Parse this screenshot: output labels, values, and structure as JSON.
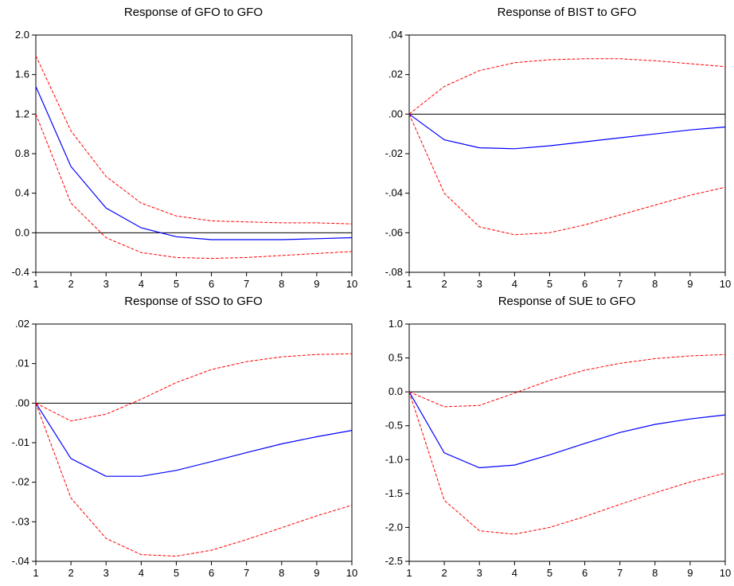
{
  "colors": {
    "response": "#0000ff",
    "band": "#ff0000",
    "zero_line": "#000000",
    "axis": "#000000"
  },
  "chart_data": [
    {
      "type": "line",
      "title": "Response of GFO to GFO",
      "x": [
        1,
        2,
        3,
        4,
        5,
        6,
        7,
        8,
        9,
        10
      ],
      "xlim": [
        1,
        10
      ],
      "ylim": [
        -0.4,
        2.0
      ],
      "yticks": [
        -0.4,
        0.0,
        0.4,
        0.8,
        1.2,
        1.6,
        2.0
      ],
      "ytick_labels": [
        "-0.4",
        "0.0",
        "0.4",
        "0.8",
        "1.2",
        "1.6",
        "2.0"
      ],
      "grid": false,
      "series": [
        {
          "role": "response",
          "values": [
            1.48,
            0.67,
            0.25,
            0.05,
            -0.04,
            -0.07,
            -0.07,
            -0.07,
            -0.06,
            -0.05
          ]
        },
        {
          "role": "upper_band",
          "values": [
            1.79,
            1.03,
            0.57,
            0.3,
            0.17,
            0.12,
            0.11,
            0.1,
            0.1,
            0.09
          ]
        },
        {
          "role": "lower_band",
          "values": [
            1.2,
            0.3,
            -0.05,
            -0.2,
            -0.25,
            -0.26,
            -0.25,
            -0.23,
            -0.21,
            -0.19
          ]
        }
      ]
    },
    {
      "type": "line",
      "title": "Response of BIST to GFO",
      "x": [
        1,
        2,
        3,
        4,
        5,
        6,
        7,
        8,
        9,
        10
      ],
      "xlim": [
        1,
        10
      ],
      "ylim": [
        -0.08,
        0.04
      ],
      "yticks": [
        -0.08,
        -0.06,
        -0.04,
        -0.02,
        0.0,
        0.02,
        0.04
      ],
      "ytick_labels": [
        "-.08",
        "-.06",
        "-.04",
        "-.02",
        ".00",
        ".02",
        ".04"
      ],
      "grid": false,
      "series": [
        {
          "role": "response",
          "values": [
            0.0,
            -0.013,
            -0.017,
            -0.0175,
            -0.016,
            -0.014,
            -0.012,
            -0.01,
            -0.008,
            -0.0065
          ]
        },
        {
          "role": "upper_band",
          "values": [
            0.0,
            0.014,
            0.022,
            0.026,
            0.0275,
            0.028,
            0.028,
            0.027,
            0.0255,
            0.024
          ]
        },
        {
          "role": "lower_band",
          "values": [
            0.0,
            -0.04,
            -0.057,
            -0.061,
            -0.06,
            -0.056,
            -0.051,
            -0.046,
            -0.041,
            -0.037
          ]
        }
      ]
    },
    {
      "type": "line",
      "title": "Response of SSO to GFO",
      "x": [
        1,
        2,
        3,
        4,
        5,
        6,
        7,
        8,
        9,
        10
      ],
      "xlim": [
        1,
        10
      ],
      "ylim": [
        -0.04,
        0.02
      ],
      "yticks": [
        -0.04,
        -0.03,
        -0.02,
        -0.01,
        0.0,
        0.01,
        0.02
      ],
      "ytick_labels": [
        "-.04",
        "-.03",
        "-.02",
        "-.01",
        ".00",
        ".01",
        ".02"
      ],
      "grid": false,
      "series": [
        {
          "role": "response",
          "values": [
            0.0,
            -0.014,
            -0.0185,
            -0.0185,
            -0.017,
            -0.0148,
            -0.0125,
            -0.0103,
            -0.0085,
            -0.0069
          ]
        },
        {
          "role": "upper_band",
          "values": [
            0.0,
            -0.0045,
            -0.0028,
            0.001,
            0.0052,
            0.0085,
            0.0105,
            0.0117,
            0.0123,
            0.0125
          ]
        },
        {
          "role": "lower_band",
          "values": [
            0.0,
            -0.024,
            -0.0342,
            -0.0383,
            -0.0387,
            -0.0372,
            -0.0345,
            -0.0315,
            -0.0285,
            -0.0258
          ]
        }
      ]
    },
    {
      "type": "line",
      "title": "Response of SUE to GFO",
      "x": [
        1,
        2,
        3,
        4,
        5,
        6,
        7,
        8,
        9,
        10
      ],
      "xlim": [
        1,
        10
      ],
      "ylim": [
        -2.5,
        1.0
      ],
      "yticks": [
        -2.5,
        -2.0,
        -1.5,
        -1.0,
        -0.5,
        0.0,
        0.5,
        1.0
      ],
      "ytick_labels": [
        "-2.5",
        "-2.0",
        "-1.5",
        "-1.0",
        "-0.5",
        "0.0",
        "0.5",
        "1.0"
      ],
      "grid": false,
      "series": [
        {
          "role": "response",
          "values": [
            0.0,
            -0.9,
            -1.12,
            -1.08,
            -0.93,
            -0.76,
            -0.6,
            -0.48,
            -0.4,
            -0.34
          ]
        },
        {
          "role": "upper_band",
          "values": [
            0.0,
            -0.22,
            -0.2,
            -0.02,
            0.17,
            0.32,
            0.42,
            0.49,
            0.53,
            0.55
          ]
        },
        {
          "role": "lower_band",
          "values": [
            0.0,
            -1.6,
            -2.05,
            -2.1,
            -2.0,
            -1.84,
            -1.66,
            -1.49,
            -1.33,
            -1.2
          ]
        }
      ]
    }
  ]
}
